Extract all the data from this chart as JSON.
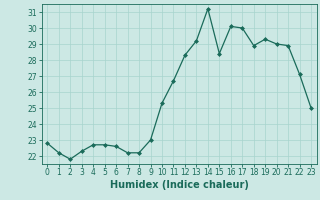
{
  "x": [
    0,
    1,
    2,
    3,
    4,
    5,
    6,
    7,
    8,
    9,
    10,
    11,
    12,
    13,
    14,
    15,
    16,
    17,
    18,
    19,
    20,
    21,
    22,
    23
  ],
  "y": [
    22.8,
    22.2,
    21.8,
    22.3,
    22.7,
    22.7,
    22.6,
    22.2,
    22.2,
    23.0,
    25.3,
    26.7,
    28.3,
    29.2,
    31.2,
    28.4,
    30.1,
    30.0,
    28.9,
    29.3,
    29.0,
    28.9,
    27.1,
    25.0
  ],
  "line_color": "#1a6b5a",
  "marker": "D",
  "marker_size": 2.0,
  "bg_color": "#cce8e4",
  "grid_color": "#a8d4ce",
  "xlabel": "Humidex (Indice chaleur)",
  "ylim": [
    21.5,
    31.5
  ],
  "xlim": [
    -0.5,
    23.5
  ],
  "yticks": [
    22,
    23,
    24,
    25,
    26,
    27,
    28,
    29,
    30,
    31
  ],
  "xticks": [
    0,
    1,
    2,
    3,
    4,
    5,
    6,
    7,
    8,
    9,
    10,
    11,
    12,
    13,
    14,
    15,
    16,
    17,
    18,
    19,
    20,
    21,
    22,
    23
  ],
  "tick_label_fontsize": 5.5,
  "xlabel_fontsize": 7.0,
  "tick_color": "#1a6b5a",
  "axes_color": "#1a6b5a",
  "linewidth": 0.9
}
